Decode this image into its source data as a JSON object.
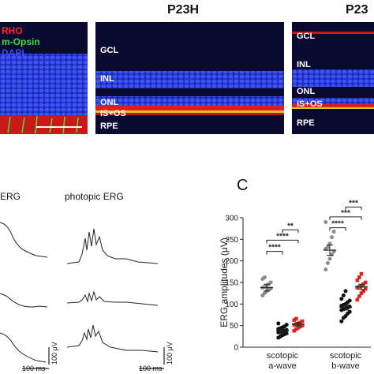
{
  "top": {
    "header_middle": "P23H",
    "header_right": "P23",
    "legend": {
      "rho": "RHO",
      "mopsin": "m-Opsin",
      "dapi": "DAPI"
    },
    "legend_colors": {
      "rho": "#ff2a2a",
      "mopsin": "#37e03a",
      "dapi": "#3a4cff"
    },
    "layers": {
      "gcl": "GCL",
      "inl": "INL",
      "onl": "ONL",
      "isos": "IS+OS",
      "rpe": "RPE"
    }
  },
  "erg": {
    "title_left": "ERG",
    "title_right": "photopic ERG",
    "scale_v_left": "100 μV",
    "scale_v_right": "100 μV",
    "scale_t_left": "100 ms",
    "scale_t_right": "100 ms"
  },
  "panel_c": {
    "letter": "C",
    "chart_data": {
      "type": "scatter",
      "ylabel": "ERG amplitudes (μV)",
      "ylim": [
        0,
        300
      ],
      "yticks": [
        "0",
        "50",
        "100",
        "150",
        "200",
        "250",
        "300"
      ],
      "categories": [
        {
          "line1": "scotopic",
          "line2": "a-wave"
        },
        {
          "line1": "scotopic",
          "line2": "b-wave"
        }
      ],
      "groups": [
        {
          "category": 0,
          "color": "#8c8c8c",
          "marker": "circle",
          "mean": 138,
          "sem": 8,
          "values": [
            120,
            125,
            130,
            133,
            136,
            138,
            140,
            143,
            146,
            150,
            158,
            162
          ]
        },
        {
          "category": 0,
          "color": "#111111",
          "marker": "circle",
          "mean": 38,
          "sem": 4,
          "values": [
            22,
            25,
            28,
            30,
            32,
            34,
            35,
            37,
            38,
            40,
            42,
            44,
            46,
            48,
            52,
            55
          ]
        },
        {
          "category": 0,
          "color": "#e02222",
          "marker": "square",
          "mean": 53,
          "sem": 4,
          "values": [
            38,
            42,
            45,
            48,
            50,
            52,
            53,
            55,
            57,
            60,
            63,
            66
          ]
        },
        {
          "category": 1,
          "color": "#8c8c8c",
          "marker": "circle",
          "mean": 225,
          "sem": 12,
          "values": [
            180,
            195,
            205,
            215,
            222,
            228,
            232,
            240,
            255,
            268,
            290
          ]
        },
        {
          "category": 1,
          "color": "#111111",
          "marker": "circle",
          "mean": 92,
          "sem": 6,
          "values": [
            60,
            68,
            72,
            78,
            82,
            86,
            88,
            90,
            92,
            94,
            96,
            98,
            100,
            104,
            108,
            112,
            120,
            130
          ]
        },
        {
          "category": 1,
          "color": "#e02222",
          "marker": "square",
          "mean": 140,
          "sem": 6,
          "values": [
            110,
            118,
            125,
            130,
            135,
            138,
            140,
            142,
            146,
            150,
            155,
            162,
            170
          ]
        }
      ],
      "significance": [
        {
          "category": 0,
          "from": 1,
          "to": 2,
          "label": "**",
          "y": 272
        },
        {
          "category": 0,
          "from": 0,
          "to": 2,
          "label": "****",
          "y": 248
        },
        {
          "category": 0,
          "from": 0,
          "to": 1,
          "label": "****",
          "y": 222
        },
        {
          "category": 1,
          "from": 1,
          "to": 2,
          "label": "***",
          "y": 325
        },
        {
          "category": 1,
          "from": 0,
          "to": 2,
          "label": "***",
          "y": 302
        },
        {
          "category": 1,
          "from": 0,
          "to": 1,
          "label": "****",
          "y": 277
        }
      ]
    }
  }
}
